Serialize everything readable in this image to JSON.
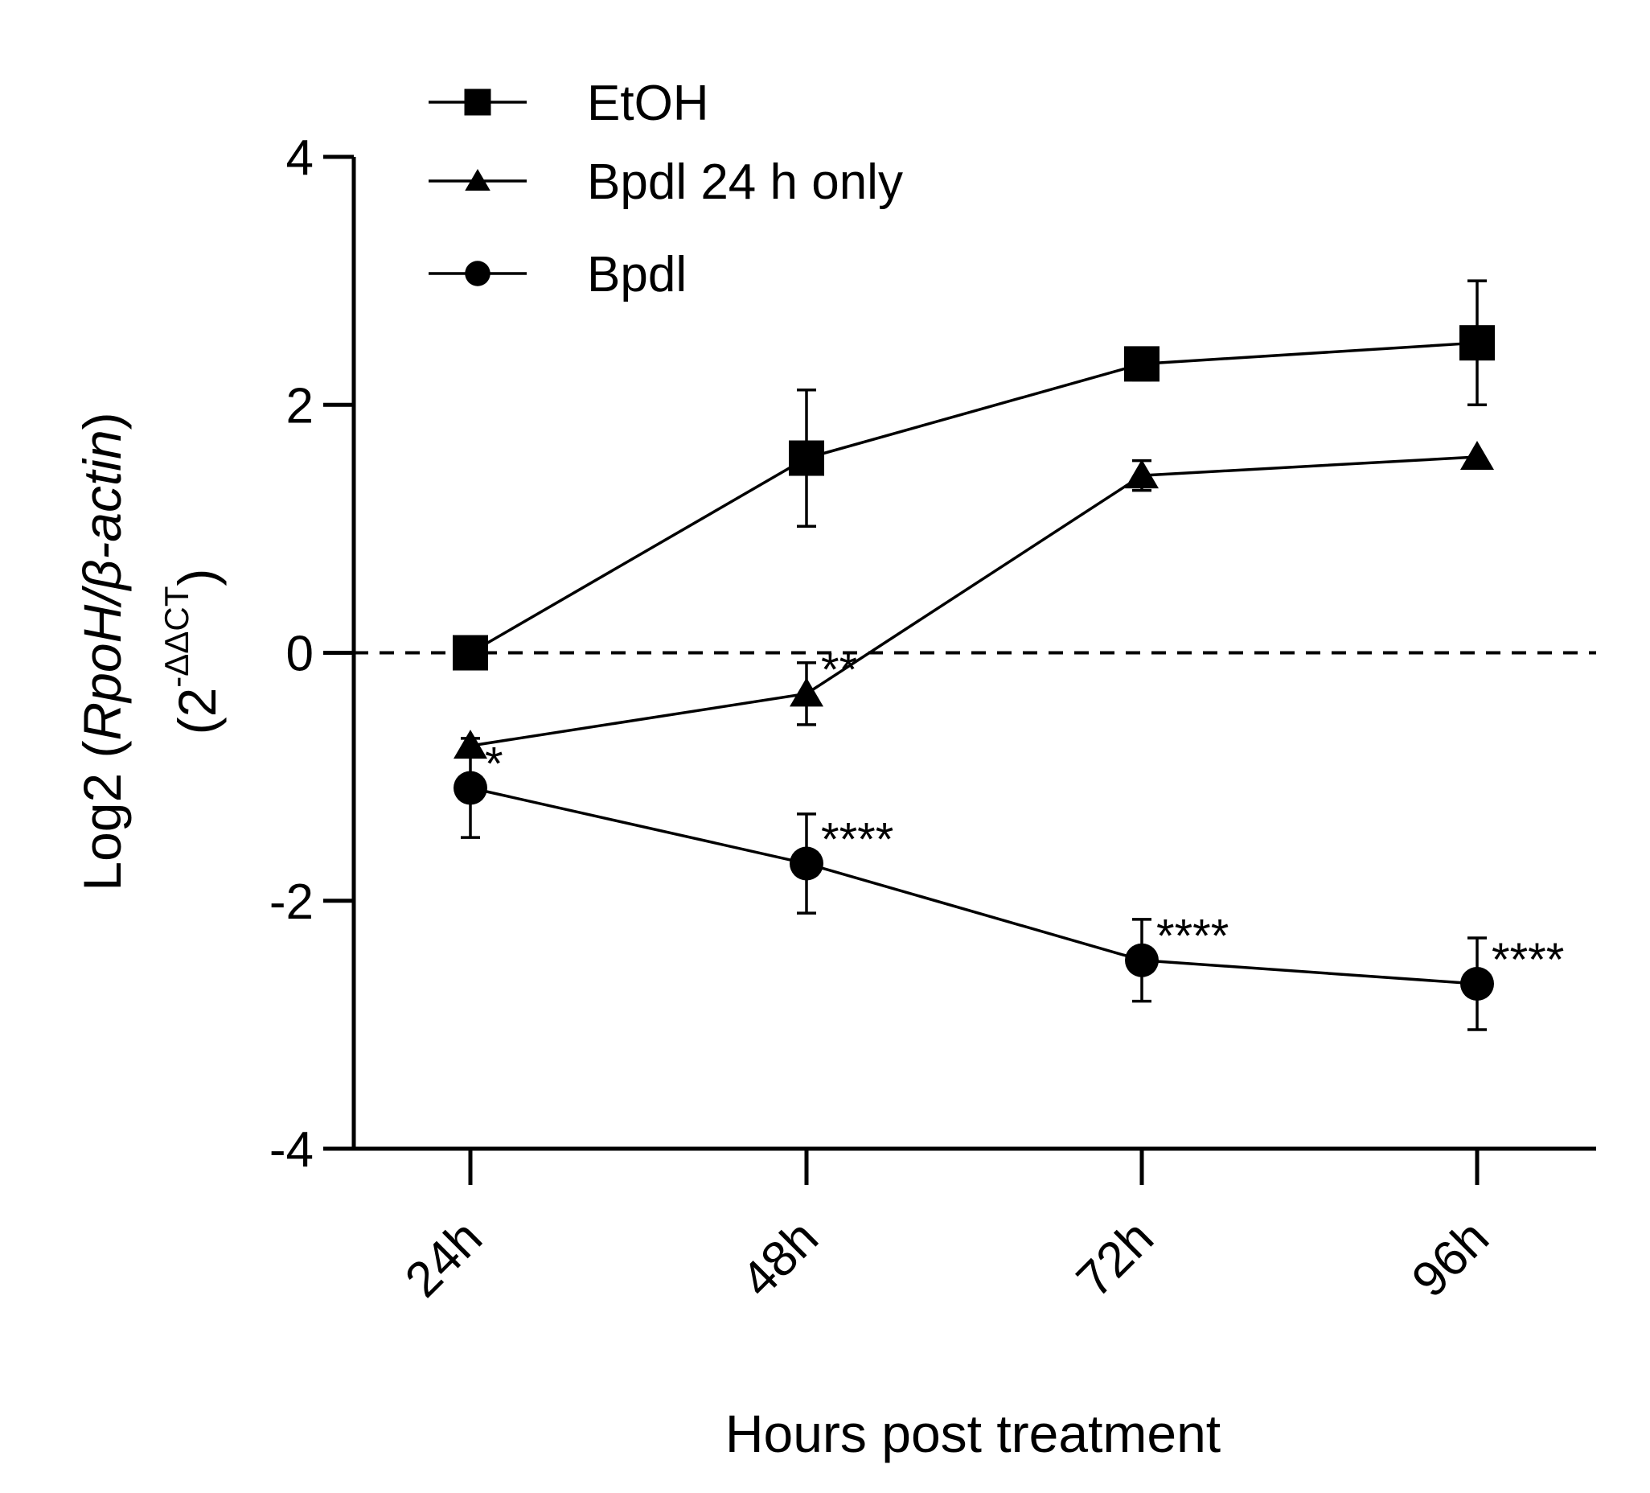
{
  "chart_data": {
    "type": "line",
    "title": "",
    "xlabel": "Hours post treatment",
    "ylabel_parts": {
      "prefix": "Log2 (",
      "italic": "RpoH/β-actin",
      "suffix": ")",
      "line2_open": "(2",
      "superscript": "-ΔΔCT",
      "line2_close": ")"
    },
    "categories": [
      "24h",
      "48h",
      "72h",
      "96h"
    ],
    "ylim": [
      -4,
      4
    ],
    "yticks": [
      4,
      2,
      0,
      -2,
      -4
    ],
    "ytick_labels": [
      "4",
      "2",
      "0",
      "-2",
      "-4"
    ],
    "reference_line": {
      "y": 0,
      "style": "dashed"
    },
    "legend_position": "top-left",
    "series": [
      {
        "name": "EtOH",
        "marker": "square",
        "values": [
          0.0,
          1.57,
          2.33,
          2.5
        ],
        "errors": [
          0.0,
          0.55,
          0.13,
          0.5
        ],
        "significance": [
          "",
          "",
          "",
          ""
        ]
      },
      {
        "name": "Bpdl 24 h only",
        "marker": "triangle",
        "values": [
          -0.75,
          -0.33,
          1.43,
          1.58
        ],
        "errors": [
          0.0,
          0.25,
          0.12,
          0.0
        ],
        "significance": [
          "",
          "**",
          "",
          ""
        ]
      },
      {
        "name": "Bpdl",
        "marker": "circle",
        "values": [
          -1.09,
          -1.7,
          -2.48,
          -2.67
        ],
        "errors": [
          0.4,
          0.4,
          0.33,
          0.37
        ],
        "significance": [
          "*",
          "****",
          "****",
          "****"
        ]
      }
    ]
  }
}
